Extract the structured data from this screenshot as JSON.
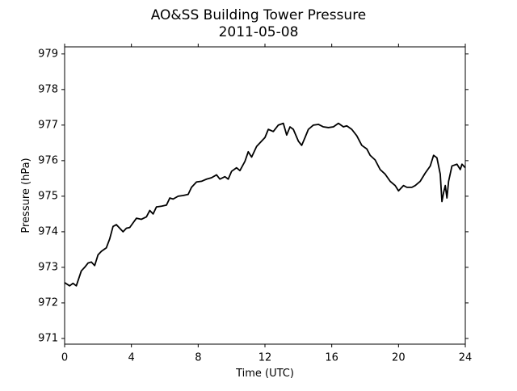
{
  "chart_data": {
    "type": "line",
    "title": "AO&SS Building Tower Pressure",
    "subtitle": "2011-05-08",
    "x_label": "Time (UTC)",
    "y_label": "Pressure (hPa)",
    "xlim": [
      0,
      24
    ],
    "xticks": [
      0,
      4,
      8,
      12,
      16,
      20,
      24
    ],
    "ylim": [
      970.84,
      979.2
    ],
    "yticks": [
      971,
      972,
      973,
      974,
      975,
      976,
      977,
      978,
      979
    ],
    "grid": false,
    "series": [
      {
        "name": "Pressure",
        "color": "#000000",
        "x": [
          0,
          0.3,
          0.5,
          0.7,
          1.0,
          1.2,
          1.4,
          1.6,
          1.8,
          2.0,
          2.2,
          2.5,
          2.7,
          2.9,
          3.1,
          3.3,
          3.5,
          3.7,
          3.9,
          4.1,
          4.3,
          4.6,
          4.9,
          5.1,
          5.3,
          5.5,
          5.8,
          6.1,
          6.3,
          6.5,
          6.8,
          7.1,
          7.4,
          7.6,
          7.9,
          8.2,
          8.5,
          8.8,
          9.1,
          9.3,
          9.6,
          9.8,
          10.0,
          10.3,
          10.5,
          10.8,
          11.0,
          11.2,
          11.5,
          11.8,
          12.0,
          12.2,
          12.5,
          12.8,
          13.1,
          13.3,
          13.5,
          13.7,
          14.0,
          14.2,
          14.4,
          14.6,
          14.9,
          15.2,
          15.5,
          15.8,
          16.1,
          16.4,
          16.7,
          16.9,
          17.2,
          17.5,
          17.8,
          18.1,
          18.3,
          18.6,
          18.9,
          19.2,
          19.5,
          19.8,
          20.0,
          20.3,
          20.5,
          20.8,
          21.0,
          21.3,
          21.6,
          21.9,
          22.1,
          22.3,
          22.5,
          22.6,
          22.7,
          22.8,
          22.9,
          23.0,
          23.2,
          23.5,
          23.7,
          23.8,
          24.0
        ],
        "values": [
          972.57,
          972.48,
          972.55,
          972.48,
          972.9,
          973.0,
          973.12,
          973.15,
          973.05,
          973.35,
          973.45,
          973.55,
          973.8,
          974.15,
          974.2,
          974.1,
          974.0,
          974.1,
          974.12,
          974.25,
          974.38,
          974.35,
          974.42,
          974.6,
          974.5,
          974.7,
          974.72,
          974.75,
          974.95,
          974.92,
          975.0,
          975.02,
          975.05,
          975.25,
          975.4,
          975.42,
          975.48,
          975.52,
          975.6,
          975.48,
          975.55,
          975.48,
          975.7,
          975.8,
          975.72,
          975.98,
          976.25,
          976.1,
          976.4,
          976.55,
          976.65,
          976.88,
          976.82,
          977.0,
          977.05,
          976.72,
          976.95,
          976.88,
          976.55,
          976.43,
          976.65,
          976.88,
          977.0,
          977.02,
          976.95,
          976.93,
          976.95,
          977.05,
          976.95,
          976.98,
          976.88,
          976.7,
          976.43,
          976.33,
          976.15,
          976.02,
          975.75,
          975.62,
          975.42,
          975.3,
          975.15,
          975.3,
          975.25,
          975.25,
          975.3,
          975.42,
          975.65,
          975.85,
          976.15,
          976.08,
          975.62,
          974.85,
          975.1,
          975.3,
          974.95,
          975.42,
          975.85,
          975.9,
          975.75,
          975.9,
          975.8
        ]
      }
    ]
  }
}
